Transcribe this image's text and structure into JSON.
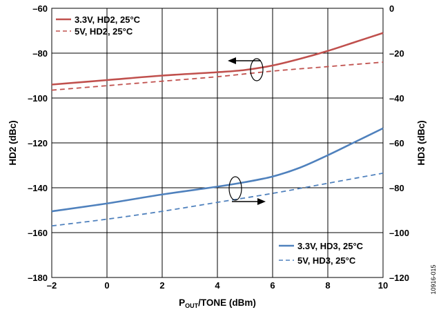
{
  "figure_id": "10916-015",
  "chart_data": {
    "type": "line",
    "xlabel": {
      "main": "P",
      "sub": "OUT",
      "rest": "/TONE (dBm)"
    },
    "ylabel_left": "HD2 (dBc)",
    "ylabel_right": "HD3 (dBc)",
    "xlim": [
      -2,
      10
    ],
    "ylim_left": [
      -180,
      -60
    ],
    "ylim_right": [
      -120,
      0
    ],
    "x_ticks": [
      -2,
      0,
      2,
      4,
      6,
      8,
      10
    ],
    "x_tick_labels": [
      "–2",
      "0",
      "2",
      "4",
      "6",
      "8",
      "10"
    ],
    "y_left_ticks": [
      -60,
      -80,
      -100,
      -120,
      -140,
      -160,
      -180
    ],
    "y_left_tick_labels": [
      "–60",
      "–80",
      "–100",
      "–120",
      "–140",
      "–160",
      "–180"
    ],
    "y_right_ticks": [
      0,
      -20,
      -40,
      -60,
      -80,
      -100,
      -120
    ],
    "y_right_tick_labels": [
      "0",
      "–20",
      "–40",
      "–60",
      "–80",
      "–100",
      "–120"
    ],
    "grid": true,
    "series": [
      {
        "name": "3.3V, HD2, 25°C",
        "axis": "left",
        "color": "#c0504d",
        "dash": "solid",
        "x": [
          -2,
          0,
          2,
          4,
          5,
          6,
          7,
          8,
          9,
          10
        ],
        "y": [
          -94,
          -92,
          -90,
          -88.5,
          -87.5,
          -85.5,
          -82.5,
          -79,
          -75,
          -71
        ]
      },
      {
        "name": "5V, HD2, 25°C",
        "axis": "left",
        "color": "#c0504d",
        "dash": "dashed",
        "x": [
          -2,
          0,
          2,
          4,
          6,
          8,
          10
        ],
        "y": [
          -96.5,
          -94.5,
          -92.5,
          -90.5,
          -88,
          -86,
          -84
        ]
      },
      {
        "name": "3.3V, HD3, 25°C",
        "axis": "right",
        "color": "#4f81bd",
        "dash": "solid",
        "x": [
          -2,
          0,
          2,
          4,
          5,
          6,
          7,
          8,
          9,
          10
        ],
        "y": [
          -90.5,
          -87,
          -83,
          -79.5,
          -77.5,
          -75,
          -71,
          -65.5,
          -59.5,
          -53.5
        ]
      },
      {
        "name": "5V, HD3, 25°C",
        "axis": "right",
        "color": "#4f81bd",
        "dash": "dashed",
        "x": [
          -2,
          0,
          2,
          4,
          6,
          8,
          10
        ],
        "y": [
          -97,
          -94,
          -90.5,
          -86.5,
          -82.5,
          -78,
          -73.5
        ]
      }
    ],
    "legend_top_left": [
      "3.3V, HD2, 25°C",
      "5V, HD2, 25°C"
    ],
    "legend_bottom_right": [
      "3.3V, HD3, 25°C",
      "5V, HD3, 25°C"
    ]
  }
}
